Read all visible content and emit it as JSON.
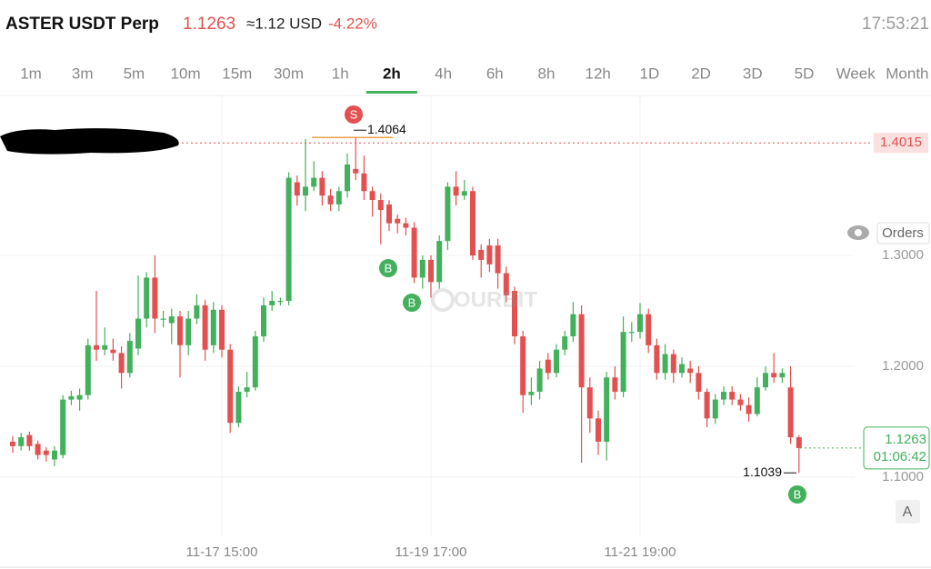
{
  "header": {
    "symbol": "ASTER USDT Perp",
    "price": "1.1263",
    "usd": "≈1.12 USD",
    "change": "-4.22%",
    "time": "17:53:21"
  },
  "tabs": [
    "1m",
    "3m",
    "5m",
    "10m",
    "15m",
    "30m",
    "1h",
    "2h",
    "4h",
    "6h",
    "8h",
    "12h",
    "1D",
    "2D",
    "3D",
    "5D",
    "Week",
    "Month"
  ],
  "active_tab": "2h",
  "watermark": "OURBIT",
  "orders_button": "Orders",
  "a_button": "A",
  "chart_data": {
    "type": "candlestick",
    "categories": [
      null,
      null,
      null,
      null,
      null,
      null,
      null,
      null,
      null,
      null,
      null,
      null,
      null,
      null,
      null,
      null,
      null,
      null,
      null,
      null,
      null,
      null,
      null,
      null,
      null,
      "11-17 15:00",
      null,
      null,
      null,
      null,
      null,
      null,
      null,
      null,
      null,
      null,
      null,
      null,
      null,
      null,
      null,
      null,
      null,
      null,
      null,
      null,
      null,
      null,
      null,
      null,
      "11-19 17:00",
      null,
      null,
      null,
      null,
      null,
      null,
      null,
      null,
      null,
      null,
      null,
      null,
      null,
      null,
      null,
      null,
      null,
      null,
      null,
      null,
      null,
      null,
      null,
      null,
      "11-21 19:00",
      null,
      null,
      null,
      null,
      null,
      null,
      null,
      null,
      null,
      null,
      null,
      null,
      null,
      null,
      null,
      null,
      null,
      null,
      null
    ],
    "open": [
      1.132,
      1.128,
      1.138,
      1.13,
      1.124,
      1.116,
      1.12,
      1.17,
      1.17,
      1.174,
      1.219,
      1.215,
      1.215,
      1.212,
      1.194,
      1.216,
      1.243,
      1.28,
      1.243,
      1.239,
      1.245,
      1.219,
      1.243,
      1.255,
      1.219,
      1.251,
      1.215,
      1.149,
      1.177,
      1.181,
      1.227,
      1.255,
      1.259,
      1.259,
      1.366,
      1.354,
      1.362,
      1.37,
      1.354,
      1.346,
      1.358,
      1.378,
      1.374,
      1.358,
      1.35,
      1.346,
      1.333,
      1.329,
      1.325,
      1.28,
      1.296,
      1.276,
      1.313,
      1.362,
      1.354,
      1.358,
      1.305,
      1.309,
      1.309,
      1.284,
      1.268,
      1.227,
      1.174,
      1.177,
      1.206,
      1.194,
      1.215,
      1.227,
      1.247,
      1.181,
      1.153,
      1.132,
      1.19,
      1.177,
      1.231,
      1.231,
      1.247,
      1.219,
      1.194,
      1.211,
      1.194,
      1.198,
      1.194,
      1.177,
      1.153,
      1.17,
      1.177,
      1.17,
      1.165,
      1.157,
      1.181,
      1.194,
      1.19,
      1.181,
      1.136
    ],
    "high": [
      1.137,
      1.14,
      1.141,
      1.133,
      1.127,
      1.128,
      1.174,
      1.178,
      1.18,
      1.225,
      1.268,
      1.235,
      1.225,
      1.218,
      1.23,
      1.282,
      1.285,
      1.3,
      1.25,
      1.252,
      1.25,
      1.25,
      1.265,
      1.26,
      1.258,
      1.255,
      1.22,
      1.182,
      1.195,
      1.232,
      1.262,
      1.268,
      1.262,
      1.375,
      1.372,
      1.405,
      1.385,
      1.376,
      1.36,
      1.362,
      1.392,
      1.4064,
      1.39,
      1.362,
      1.356,
      1.35,
      1.337,
      1.334,
      1.33,
      1.3,
      1.3,
      1.318,
      1.366,
      1.376,
      1.368,
      1.362,
      1.31,
      1.315,
      1.315,
      1.29,
      1.272,
      1.232,
      1.19,
      1.205,
      1.212,
      1.22,
      1.232,
      1.258,
      1.255,
      1.19,
      1.16,
      1.195,
      1.2,
      1.245,
      1.24,
      1.257,
      1.252,
      1.225,
      1.22,
      1.215,
      1.208,
      1.205,
      1.2,
      1.18,
      1.175,
      1.182,
      1.182,
      1.175,
      1.172,
      1.19,
      1.2,
      1.212,
      1.198,
      1.2,
      1.138
    ],
    "low": [
      1.122,
      1.124,
      1.124,
      1.116,
      1.114,
      1.11,
      1.117,
      1.165,
      1.16,
      1.17,
      1.205,
      1.21,
      1.205,
      1.18,
      1.19,
      1.21,
      1.235,
      1.23,
      1.235,
      1.22,
      1.19,
      1.21,
      1.238,
      1.205,
      1.212,
      1.208,
      1.14,
      1.145,
      1.172,
      1.178,
      1.222,
      1.25,
      1.255,
      1.255,
      1.345,
      1.34,
      1.358,
      1.345,
      1.34,
      1.34,
      1.352,
      1.368,
      1.35,
      1.335,
      1.31,
      1.322,
      1.32,
      1.318,
      1.275,
      1.27,
      1.262,
      1.27,
      1.305,
      1.345,
      1.35,
      1.296,
      1.28,
      1.285,
      1.27,
      1.258,
      1.22,
      1.158,
      1.165,
      1.17,
      1.188,
      1.19,
      1.21,
      1.222,
      1.113,
      1.14,
      1.12,
      1.115,
      1.17,
      1.172,
      1.222,
      1.225,
      1.212,
      1.188,
      1.188,
      1.185,
      1.19,
      1.185,
      1.17,
      1.145,
      1.148,
      1.165,
      1.165,
      1.16,
      1.15,
      1.155,
      1.178,
      1.185,
      1.185,
      1.13,
      1.1039
    ],
    "close": [
      1.128,
      1.136,
      1.128,
      1.12,
      1.12,
      1.124,
      1.17,
      1.173,
      1.174,
      1.219,
      1.215,
      1.219,
      1.212,
      1.194,
      1.223,
      1.243,
      1.28,
      1.243,
      1.243,
      1.245,
      1.219,
      1.243,
      1.255,
      1.215,
      1.251,
      1.215,
      1.149,
      1.177,
      1.181,
      1.227,
      1.255,
      1.259,
      1.259,
      1.37,
      1.354,
      1.362,
      1.37,
      1.354,
      1.346,
      1.358,
      1.382,
      1.374,
      1.358,
      1.35,
      1.341,
      1.329,
      1.329,
      1.325,
      1.28,
      1.296,
      1.276,
      1.313,
      1.362,
      1.354,
      1.358,
      1.3,
      1.296,
      1.292,
      1.284,
      1.264,
      1.227,
      1.174,
      1.177,
      1.198,
      1.194,
      1.215,
      1.227,
      1.247,
      1.181,
      1.153,
      1.132,
      1.19,
      1.177,
      1.231,
      1.231,
      1.247,
      1.219,
      1.194,
      1.211,
      1.194,
      1.202,
      1.194,
      1.177,
      1.153,
      1.17,
      1.177,
      1.17,
      1.165,
      1.157,
      1.181,
      1.194,
      1.19,
      1.194,
      1.136,
      1.1263
    ],
    "up_color": "#43b05c",
    "down_color": "#e2514f",
    "ylim": [
      1.0467,
      1.4443
    ],
    "yticks": [
      {
        "value": 1.1,
        "label": "1.1000"
      },
      {
        "value": 1.2,
        "label": "1.2000"
      },
      {
        "value": 1.3,
        "label": "1.3000"
      }
    ],
    "grid": true,
    "high_marker": 1.4064,
    "low_marker": 1.1039,
    "alert_line": 1.4015,
    "last_price": 1.1263,
    "countdown": "01:06:42",
    "markers": [
      "S",
      "B",
      "B",
      "B"
    ]
  }
}
